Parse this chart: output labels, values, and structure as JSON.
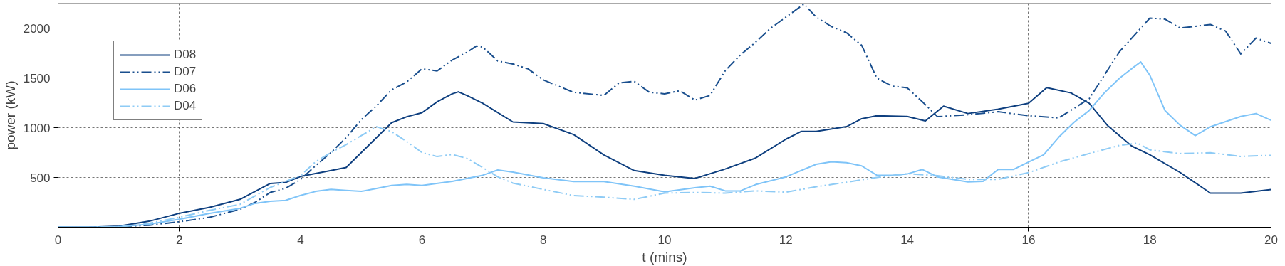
{
  "chart_data": {
    "type": "line",
    "xlabel": "t (mins)",
    "ylabel": "power (kW)",
    "xlim": [
      0,
      20
    ],
    "ylim": [
      0,
      2250
    ],
    "xticks": [
      0,
      2,
      4,
      6,
      8,
      10,
      12,
      14,
      16,
      18,
      20
    ],
    "yticks": [
      500,
      1000,
      1500,
      2000
    ],
    "grid": true,
    "legend": "top left",
    "series": [
      {
        "name": "D08",
        "color": "#0e3f7f",
        "line_style": "solid",
        "x": [
          0,
          0.5,
          1,
          1.5,
          2,
          2.5,
          3,
          3.25,
          3.5,
          3.75,
          4,
          4.5,
          4.75,
          5,
          5.25,
          5.5,
          5.75,
          6,
          6.25,
          6.5,
          6.6,
          6.75,
          7,
          7.5,
          8,
          8.5,
          9,
          9.5,
          10,
          10.5,
          11,
          11.5,
          12,
          12.25,
          12.5,
          13,
          13.25,
          13.5,
          14,
          14.3,
          14.6,
          15,
          15.5,
          16,
          16.3,
          16.7,
          17,
          17.3,
          17.7,
          18,
          18.5,
          19,
          19.5,
          20
        ],
        "values": [
          0,
          0,
          10,
          60,
          140,
          200,
          280,
          360,
          440,
          450,
          510,
          570,
          600,
          750,
          900,
          1050,
          1110,
          1150,
          1260,
          1340,
          1360,
          1320,
          1245,
          1057,
          1041,
          931,
          726,
          569,
          522,
          490,
          585,
          695,
          884,
          962,
          962,
          1010,
          1090,
          1120,
          1112,
          1068,
          1216,
          1142,
          1186,
          1245,
          1402,
          1349,
          1245,
          1024,
          816,
          727,
          550,
          343,
          343,
          379
        ]
      },
      {
        "name": "D07",
        "color": "#1a4f8e",
        "line_style": "dashed",
        "x": [
          0,
          0.5,
          1,
          1.5,
          2,
          2.5,
          3,
          3.25,
          3.5,
          3.75,
          4,
          4.25,
          4.5,
          4.75,
          5,
          5.25,
          5.5,
          5.75,
          6,
          6.25,
          6.5,
          6.75,
          6.9,
          7,
          7.25,
          7.5,
          7.75,
          8,
          8.5,
          9,
          9.25,
          9.5,
          9.75,
          10,
          10.25,
          10.5,
          10.75,
          11,
          11.25,
          11.5,
          11.75,
          12,
          12.3,
          12.5,
          12.75,
          13,
          13.25,
          13.5,
          13.75,
          14,
          14.25,
          14.5,
          15,
          15.5,
          16,
          16.5,
          17,
          17.5,
          18,
          18.25,
          18.5,
          19,
          19.25,
          19.5,
          19.75,
          20
        ],
        "values": [
          0,
          0,
          5,
          20,
          55,
          100,
          180,
          250,
          350,
          390,
          480,
          620,
          750,
          900,
          1080,
          1220,
          1380,
          1460,
          1590,
          1570,
          1680,
          1760,
          1820,
          1810,
          1670,
          1640,
          1590,
          1480,
          1355,
          1324,
          1450,
          1465,
          1355,
          1340,
          1371,
          1277,
          1324,
          1572,
          1730,
          1858,
          2000,
          2110,
          2242,
          2110,
          2016,
          1953,
          1827,
          1497,
          1418,
          1400,
          1260,
          1110,
          1130,
          1160,
          1120,
          1098,
          1290,
          1763,
          2100,
          2090,
          2000,
          2036,
          1970,
          1740,
          1900,
          1846
        ]
      },
      {
        "name": "D06",
        "color": "#7fc4f8",
        "line_style": "solid",
        "x": [
          0,
          0.5,
          1,
          1.5,
          2,
          2.5,
          3,
          3.25,
          3.5,
          3.75,
          4,
          4.25,
          4.5,
          4.75,
          5,
          5.25,
          5.5,
          5.75,
          6,
          6.5,
          7,
          7.25,
          7.5,
          8,
          8.5,
          9,
          9.5,
          10,
          10.5,
          10.75,
          11,
          11.25,
          11.5,
          12,
          12.5,
          12.75,
          13,
          13.25,
          13.5,
          13.75,
          14,
          14.25,
          14.5,
          15,
          15.25,
          15.5,
          15.75,
          16,
          16.25,
          16.5,
          16.75,
          17,
          17.25,
          17.5,
          17.75,
          17.85,
          18,
          18.25,
          18.5,
          18.75,
          19,
          19.5,
          19.75,
          20
        ],
        "values": [
          0,
          0,
          5,
          30,
          80,
          140,
          190,
          240,
          260,
          270,
          320,
          360,
          380,
          370,
          360,
          390,
          420,
          430,
          420,
          460,
          522,
          575,
          553,
          497,
          459,
          459,
          412,
          355,
          396,
          412,
          365,
          365,
          428,
          506,
          632,
          657,
          648,
          616,
          522,
          522,
          535,
          580,
          506,
          455,
          461,
          580,
          580,
          654,
          728,
          905,
          1053,
          1172,
          1349,
          1497,
          1615,
          1660,
          1527,
          1172,
          1024,
          920,
          1009,
          1112,
          1142,
          1074
        ]
      },
      {
        "name": "D04",
        "color": "#8ecbf5",
        "line_style": "dashed",
        "x": [
          0,
          0.5,
          1,
          1.5,
          2,
          2.5,
          3,
          3.5,
          4,
          4.25,
          4.5,
          4.75,
          5,
          5.25,
          5.5,
          5.75,
          6,
          6.25,
          6.5,
          6.75,
          7,
          7.25,
          7.5,
          8,
          8.5,
          9,
          9.5,
          10,
          10.5,
          11,
          11.5,
          12,
          12.5,
          13,
          13.5,
          14,
          14.5,
          15,
          15.5,
          16,
          16.5,
          17,
          17.5,
          17.8,
          18,
          18.5,
          19,
          19.5,
          20
        ],
        "values": [
          0,
          0,
          5,
          40,
          100,
          170,
          230,
          400,
          520,
          660,
          750,
          830,
          920,
          1010,
          960,
          860,
          750,
          710,
          730,
          690,
          600,
          506,
          443,
          380,
          318,
          302,
          280,
          343,
          349,
          343,
          365,
          352,
          407,
          452,
          500,
          537,
          518,
          481,
          481,
          548,
          655,
          740,
          822,
          844,
          777,
          740,
          748,
          711,
          722
        ]
      }
    ]
  }
}
